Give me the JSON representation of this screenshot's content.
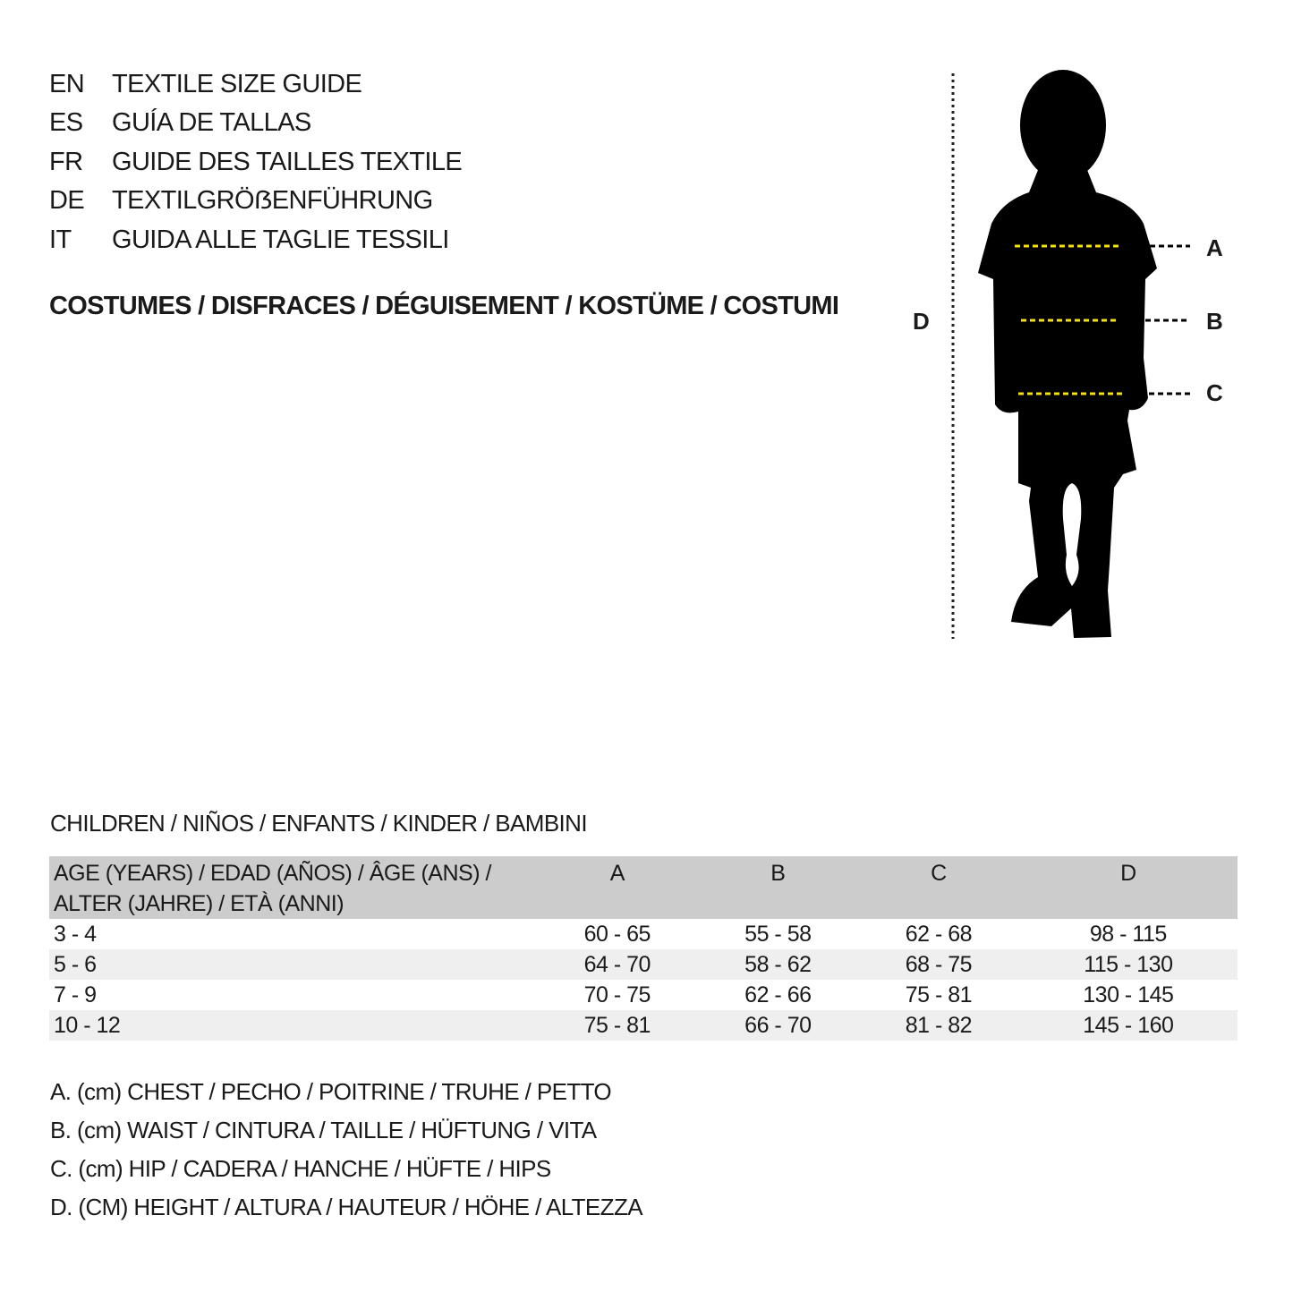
{
  "title_lines": [
    {
      "code": "EN",
      "text": "TEXTILE SIZE GUIDE"
    },
    {
      "code": "ES",
      "text": "GUÍA DE TALLAS"
    },
    {
      "code": "FR",
      "text": "GUIDE DES TAILLES TEXTILE"
    },
    {
      "code": "DE",
      "text": "TEXTILGRÖẞENFÜHRUNG"
    },
    {
      "code": "IT",
      "text": "GUIDA ALLE TAGLIE TESSILI"
    }
  ],
  "category": "COSTUMES / DISFRACES / DÉGUISEMENT / KOSTÜME / COSTUMI",
  "figure": {
    "labels": {
      "a": "A",
      "b": "B",
      "c": "C",
      "d": "D"
    },
    "measure_line_color": "#f5e010",
    "silhouette": "child-silhouette-icon"
  },
  "section_title": "CHILDREN / NIÑOS / ENFANTS / KINDER / BAMBINI",
  "table": {
    "header": {
      "age_line1": "AGE (YEARS) / EDAD (AÑOS) / ÂGE (ANS) /",
      "age_line2": "ALTER (JAHRE) / ETÀ (ANNI)",
      "cols": [
        "A",
        "B",
        "C",
        "D"
      ]
    },
    "rows": [
      {
        "age": "3 - 4",
        "a": "60 - 65",
        "b": "55 - 58",
        "c": "62 - 68",
        "d": "98 - 115"
      },
      {
        "age": "5 - 6",
        "a": "64 - 70",
        "b": "58 - 62",
        "c": "68 - 75",
        "d": "115 - 130"
      },
      {
        "age": "7 - 9",
        "a": "70 - 75",
        "b": "62 - 66",
        "c": "75 - 81",
        "d": "130 - 145"
      },
      {
        "age": "10 - 12",
        "a": "75 - 81",
        "b": "66 - 70",
        "c": "81 - 82",
        "d": "145 - 160"
      }
    ]
  },
  "legend": [
    "A. (cm) CHEST / PECHO / POITRINE / TRUHE / PETTO",
    "B. (cm) WAIST / CINTURA / TAILLE / HÜFTUNG / VITA",
    "C. (cm) HIP / CADERA / HANCHE / HÜFTE / HIPS",
    "D. (CM) HEIGHT / ALTURA / HAUTEUR / HÖHE / ALTEZZA"
  ]
}
